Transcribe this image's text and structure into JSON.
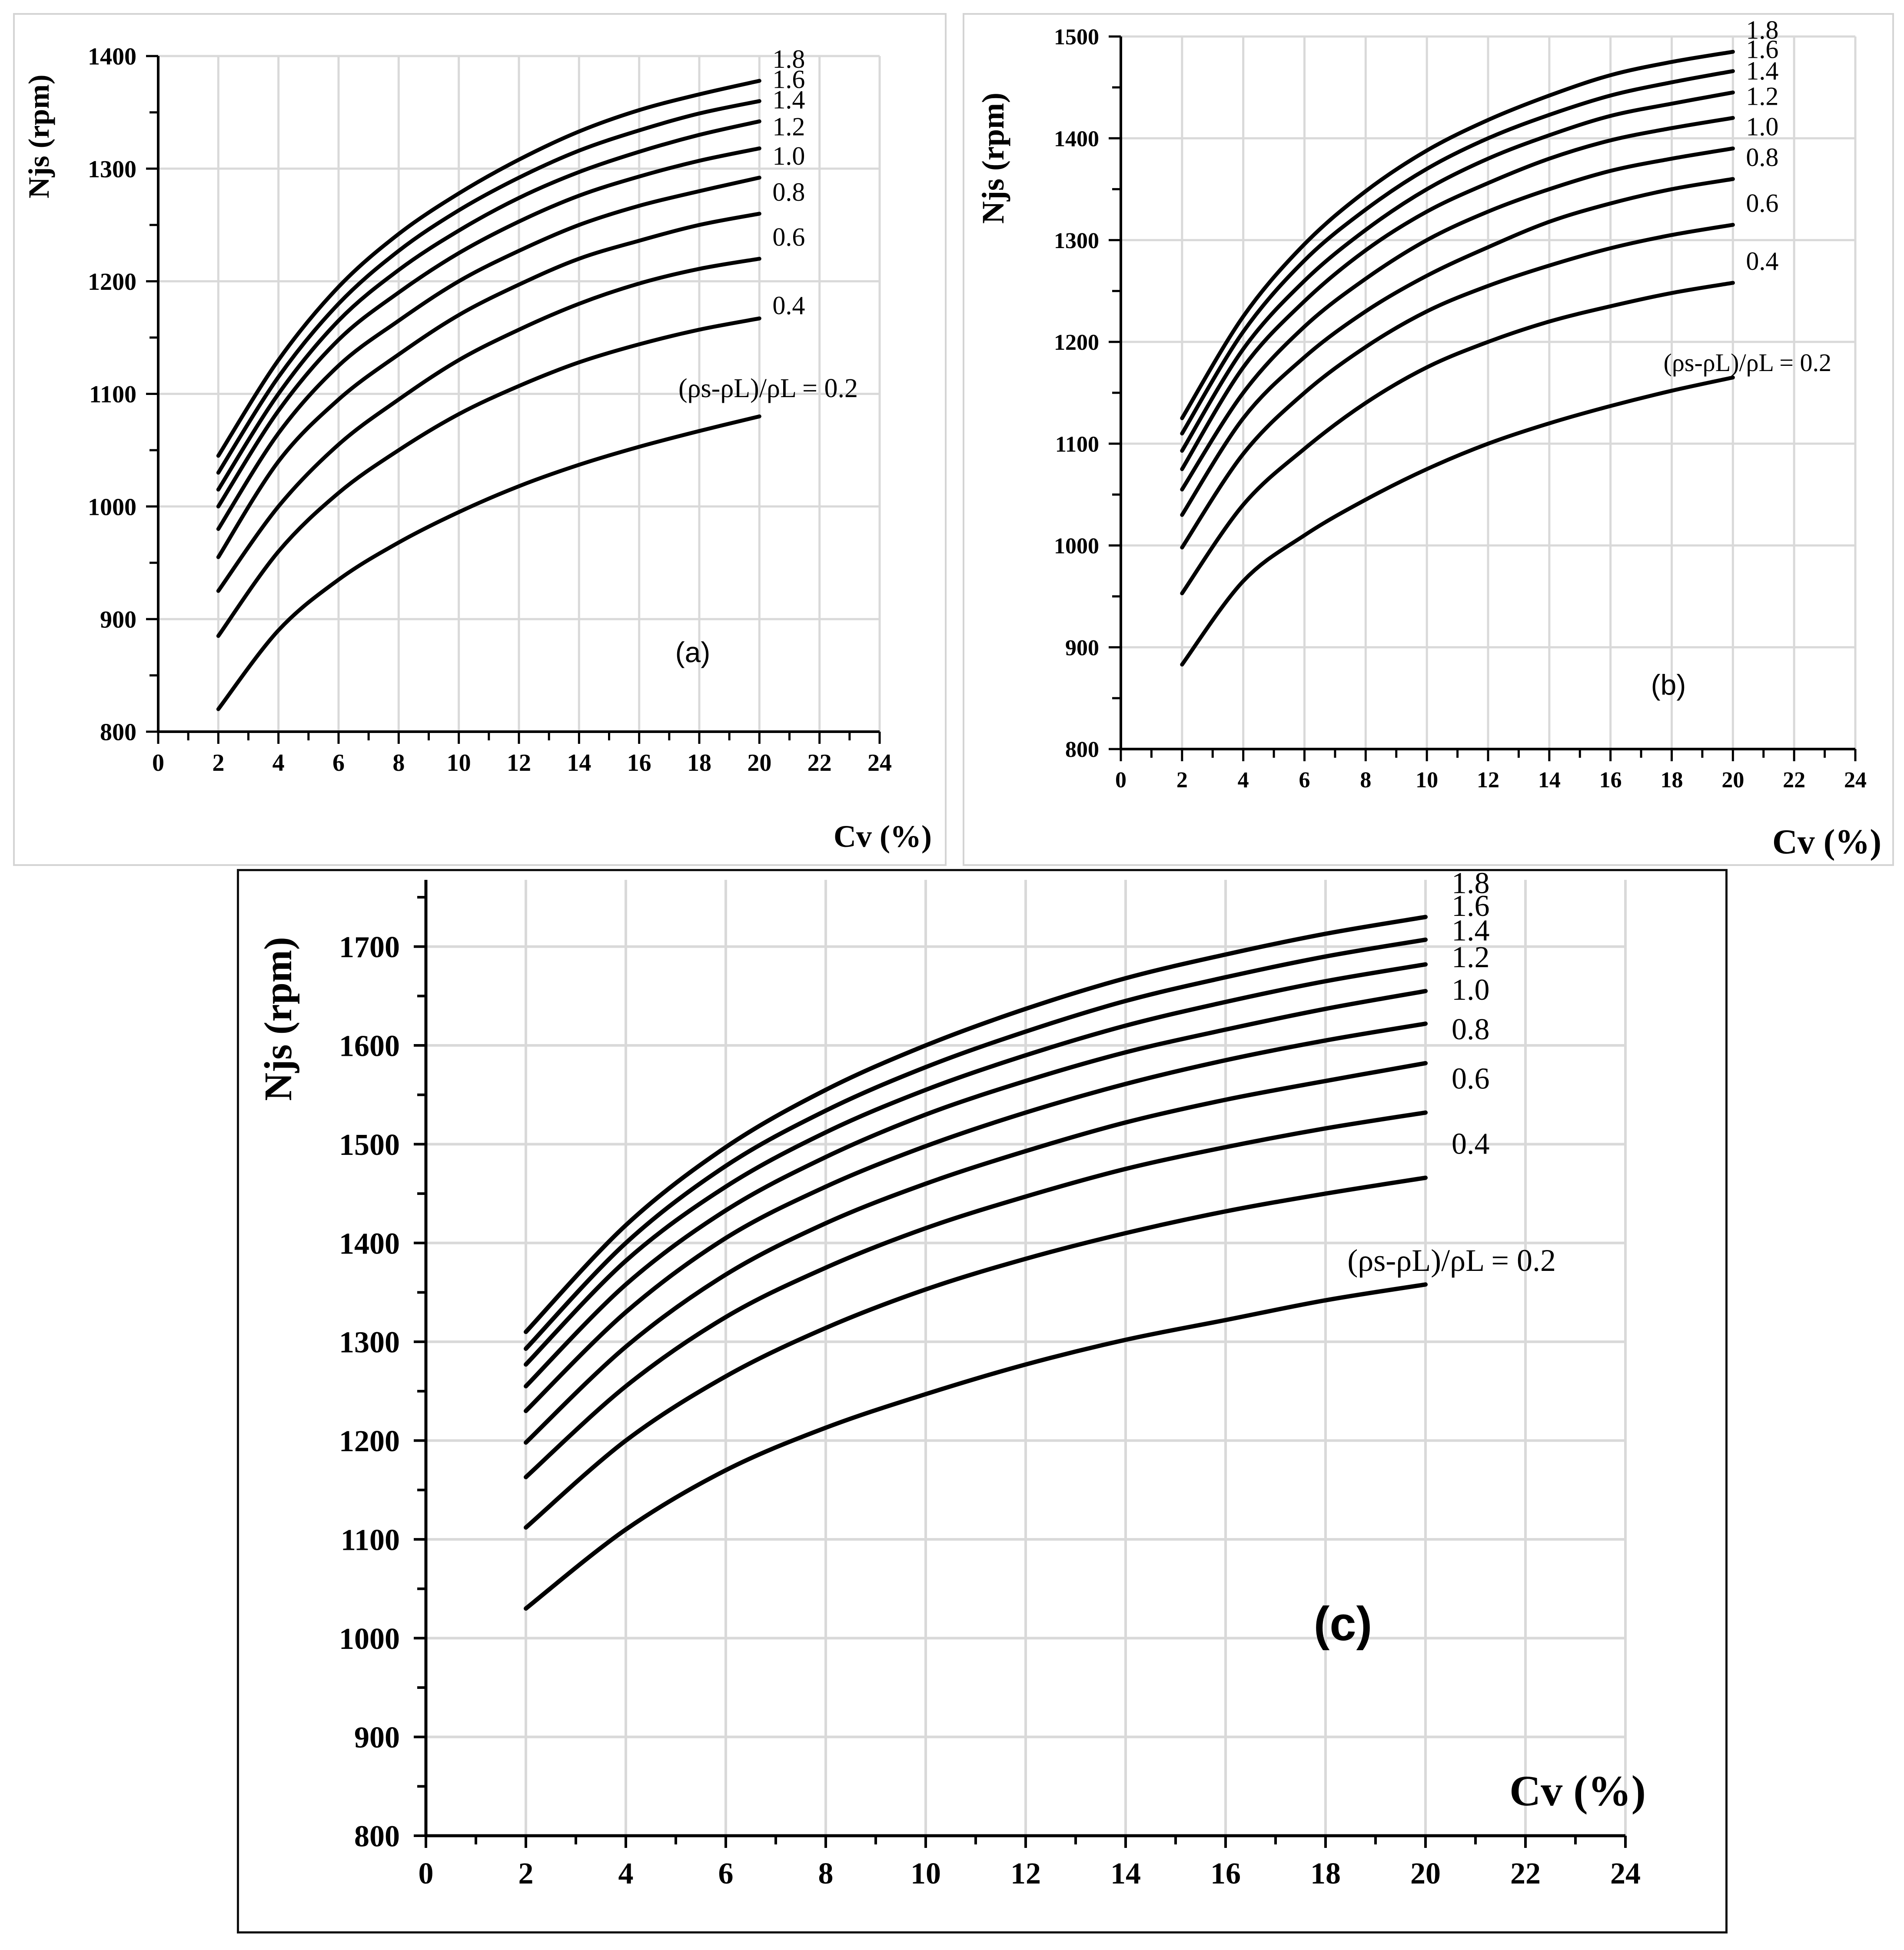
{
  "chart_data": [
    {
      "id": "a",
      "type": "line",
      "panel_label": "(a)",
      "xlabel": "Cv (%)",
      "ylabel": "Njs (rpm)",
      "xlim": [
        0,
        24
      ],
      "ylim": [
        800,
        1400
      ],
      "x_ticks": [
        "0",
        "2",
        "4",
        "6",
        "8",
        "10",
        "12",
        "14",
        "16",
        "18",
        "20",
        "22",
        "24"
      ],
      "y_ticks": [
        "800",
        "900",
        "1000",
        "1100",
        "1200",
        "1300",
        "1400"
      ],
      "grid": true,
      "x": [
        2,
        4,
        6,
        8,
        10,
        12,
        14,
        16,
        18,
        20
      ],
      "legend_prefix": "(ρs-ρL)/ρL =",
      "series": [
        {
          "name": "0.2",
          "values": [
            820,
            890,
            935,
            968,
            995,
            1018,
            1037,
            1053,
            1067,
            1080
          ]
        },
        {
          "name": "0.4",
          "values": [
            885,
            960,
            1012,
            1050,
            1082,
            1107,
            1128,
            1144,
            1157,
            1167
          ]
        },
        {
          "name": "0.6",
          "values": [
            925,
            1000,
            1055,
            1095,
            1130,
            1157,
            1180,
            1198,
            1211,
            1220
          ]
        },
        {
          "name": "0.8",
          "values": [
            955,
            1040,
            1095,
            1135,
            1170,
            1197,
            1220,
            1236,
            1250,
            1260
          ]
        },
        {
          "name": "1.0",
          "values": [
            980,
            1065,
            1125,
            1165,
            1200,
            1227,
            1250,
            1267,
            1280,
            1292
          ]
        },
        {
          "name": "1.2",
          "values": [
            1000,
            1085,
            1148,
            1190,
            1225,
            1253,
            1276,
            1293,
            1307,
            1318
          ]
        },
        {
          "name": "1.4",
          "values": [
            1015,
            1100,
            1165,
            1210,
            1245,
            1274,
            1297,
            1315,
            1330,
            1342
          ]
        },
        {
          "name": "1.6",
          "values": [
            1030,
            1115,
            1180,
            1227,
            1263,
            1292,
            1316,
            1334,
            1349,
            1360
          ]
        },
        {
          "name": "1.8",
          "values": [
            1045,
            1130,
            1195,
            1242,
            1278,
            1308,
            1333,
            1352,
            1366,
            1378
          ]
        }
      ]
    },
    {
      "id": "b",
      "type": "line",
      "panel_label": "(b)",
      "xlabel": "Cv (%)",
      "ylabel": "Njs (rpm)",
      "xlim": [
        0,
        24
      ],
      "ylim": [
        800,
        1500
      ],
      "x_ticks": [
        "0",
        "2",
        "4",
        "6",
        "8",
        "10",
        "12",
        "14",
        "16",
        "18",
        "20",
        "22",
        "24"
      ],
      "y_ticks": [
        "800",
        "900",
        "1000",
        "1100",
        "1200",
        "1300",
        "1400",
        "1500"
      ],
      "grid": true,
      "x": [
        2,
        4,
        6,
        8,
        10,
        12,
        14,
        16,
        18,
        20
      ],
      "legend_prefix": "(ρs-ρL)/ρL  =",
      "series": [
        {
          "name": "0.2",
          "values": [
            883,
            965,
            1010,
            1045,
            1075,
            1100,
            1120,
            1137,
            1152,
            1165
          ]
        },
        {
          "name": "0.4",
          "values": [
            953,
            1040,
            1095,
            1140,
            1175,
            1200,
            1220,
            1235,
            1248,
            1258
          ]
        },
        {
          "name": "0.6",
          "values": [
            998,
            1090,
            1150,
            1195,
            1230,
            1255,
            1275,
            1292,
            1305,
            1315
          ]
        },
        {
          "name": "0.8",
          "values": [
            1030,
            1125,
            1185,
            1230,
            1265,
            1293,
            1318,
            1336,
            1350,
            1360
          ]
        },
        {
          "name": "1.0",
          "values": [
            1055,
            1150,
            1215,
            1262,
            1300,
            1328,
            1350,
            1368,
            1380,
            1390
          ]
        },
        {
          "name": "1.2",
          "values": [
            1075,
            1175,
            1240,
            1290,
            1328,
            1356,
            1380,
            1398,
            1410,
            1420
          ]
        },
        {
          "name": "1.4",
          "values": [
            1093,
            1193,
            1260,
            1310,
            1350,
            1380,
            1403,
            1422,
            1434,
            1445
          ]
        },
        {
          "name": "1.6",
          "values": [
            1110,
            1210,
            1280,
            1330,
            1370,
            1400,
            1423,
            1442,
            1455,
            1466
          ]
        },
        {
          "name": "1.8",
          "values": [
            1125,
            1225,
            1296,
            1348,
            1388,
            1418,
            1442,
            1462,
            1475,
            1485
          ]
        }
      ]
    },
    {
      "id": "c",
      "type": "line",
      "panel_label": "(c)",
      "xlabel": "Cv (%)",
      "ylabel": "Njs (rpm)",
      "xlim": [
        0,
        24
      ],
      "ylim": [
        800,
        1750
      ],
      "x_ticks": [
        "0",
        "2",
        "4",
        "6",
        "8",
        "10",
        "12",
        "14",
        "16",
        "18",
        "20",
        "22",
        "24"
      ],
      "y_ticks": [
        "800",
        "900",
        "1000",
        "1100",
        "1200",
        "1300",
        "1400",
        "1500",
        "1600",
        "1700"
      ],
      "grid": true,
      "x": [
        2,
        4,
        6,
        8,
        10,
        12,
        14,
        16,
        18,
        20
      ],
      "legend_prefix": "(ρs-ρL)/ρL = ",
      "series": [
        {
          "name": "0.2",
          "values": [
            1030,
            1110,
            1170,
            1213,
            1247,
            1277,
            1302,
            1322,
            1342,
            1358
          ]
        },
        {
          "name": "0.4",
          "values": [
            1112,
            1200,
            1265,
            1314,
            1353,
            1384,
            1410,
            1432,
            1450,
            1466
          ]
        },
        {
          "name": "0.6",
          "values": [
            1163,
            1255,
            1325,
            1375,
            1415,
            1447,
            1475,
            1497,
            1516,
            1532
          ]
        },
        {
          "name": "0.8",
          "values": [
            1198,
            1295,
            1368,
            1420,
            1460,
            1493,
            1522,
            1545,
            1564,
            1582
          ]
        },
        {
          "name": "1.0",
          "values": [
            1230,
            1330,
            1405,
            1457,
            1498,
            1532,
            1561,
            1585,
            1605,
            1622
          ]
        },
        {
          "name": "1.2",
          "values": [
            1255,
            1358,
            1433,
            1487,
            1530,
            1564,
            1593,
            1616,
            1637,
            1655
          ]
        },
        {
          "name": "1.4",
          "values": [
            1277,
            1382,
            1457,
            1512,
            1555,
            1590,
            1620,
            1644,
            1665,
            1682
          ]
        },
        {
          "name": "1.6",
          "values": [
            1293,
            1400,
            1478,
            1534,
            1578,
            1614,
            1645,
            1669,
            1690,
            1707
          ]
        },
        {
          "name": "1.8",
          "values": [
            1310,
            1418,
            1497,
            1555,
            1600,
            1637,
            1668,
            1692,
            1713,
            1730
          ]
        }
      ]
    }
  ]
}
